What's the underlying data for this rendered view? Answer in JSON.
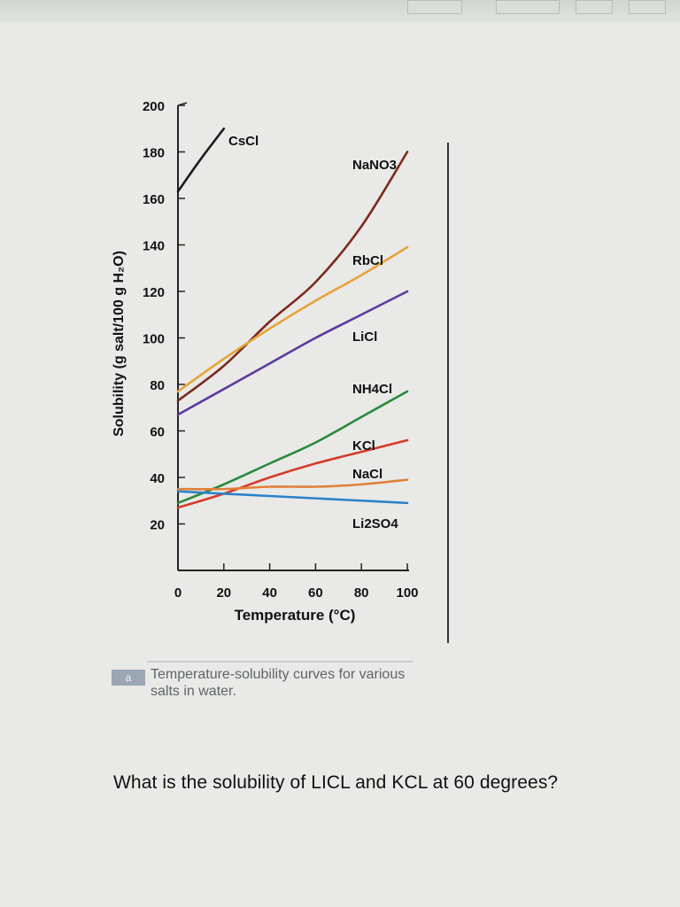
{
  "chart_data": {
    "type": "line",
    "xlabel": "Temperature (°C)",
    "ylabel": "Solubility (g salt/100 g H₂O)",
    "xlim": [
      0,
      100
    ],
    "ylim": [
      0,
      200
    ],
    "x_ticks": [
      0,
      20,
      40,
      60,
      80,
      100
    ],
    "y_ticks": [
      20,
      40,
      60,
      80,
      100,
      120,
      140,
      160,
      180,
      200
    ],
    "grid": false,
    "series": [
      {
        "name": "CsCl",
        "color": "#1a1a1a",
        "x": [
          0,
          10,
          20
        ],
        "y": [
          163,
          177,
          190
        ]
      },
      {
        "name": "NaNO₃",
        "color": "#7a2b1c",
        "x": [
          0,
          20,
          40,
          60,
          80,
          100
        ],
        "y": [
          73,
          88,
          107,
          124,
          148,
          180
        ]
      },
      {
        "name": "RbCl",
        "color": "#e6a43a",
        "x": [
          0,
          20,
          40,
          60,
          80,
          100
        ],
        "y": [
          77,
          91,
          104,
          116,
          127,
          139
        ]
      },
      {
        "name": "LiCl",
        "color": "#5c3a9e",
        "x": [
          0,
          20,
          40,
          60,
          80,
          100
        ],
        "y": [
          67,
          78,
          89,
          100,
          110,
          120
        ]
      },
      {
        "name": "NH₄Cl",
        "color": "#2a8a3c",
        "x": [
          0,
          20,
          40,
          60,
          80,
          100
        ],
        "y": [
          29,
          37,
          46,
          55,
          66,
          77
        ]
      },
      {
        "name": "KCl",
        "color": "#d63a2a",
        "x": [
          0,
          20,
          40,
          60,
          80,
          100
        ],
        "y": [
          27,
          33,
          40,
          46,
          51,
          56
        ]
      },
      {
        "name": "NaCl",
        "color": "#e0803a",
        "x": [
          0,
          20,
          40,
          60,
          80,
          100
        ],
        "y": [
          35,
          35,
          36,
          36,
          37,
          39
        ]
      },
      {
        "name": "Li₂SO₄",
        "color": "#2a82c9",
        "x": [
          0,
          20,
          40,
          60,
          80,
          100
        ],
        "y": [
          34,
          33,
          32,
          31,
          30,
          29
        ]
      }
    ],
    "labels": [
      {
        "text": "CsCl",
        "series": "CsCl"
      },
      {
        "text": "NaNO3",
        "series": "NaNO₃"
      },
      {
        "text": "RbCl",
        "series": "RbCl"
      },
      {
        "text": "LiCl",
        "series": "LiCl"
      },
      {
        "text": "NH4Cl",
        "series": "NH₄Cl"
      },
      {
        "text": "KCl",
        "series": "KCl"
      },
      {
        "text": "NaCl",
        "series": "NaCl"
      },
      {
        "text": "Li2SO4",
        "series": "Li₂SO₄"
      }
    ]
  },
  "caption": {
    "badge": "a",
    "text": "Temperature-solubility curves for various salts in water."
  },
  "question": "What is the solubility of LICL and KCL at 60 degrees?",
  "colors": {
    "axis": "#222222",
    "page_bg": "#e9e9e7"
  }
}
